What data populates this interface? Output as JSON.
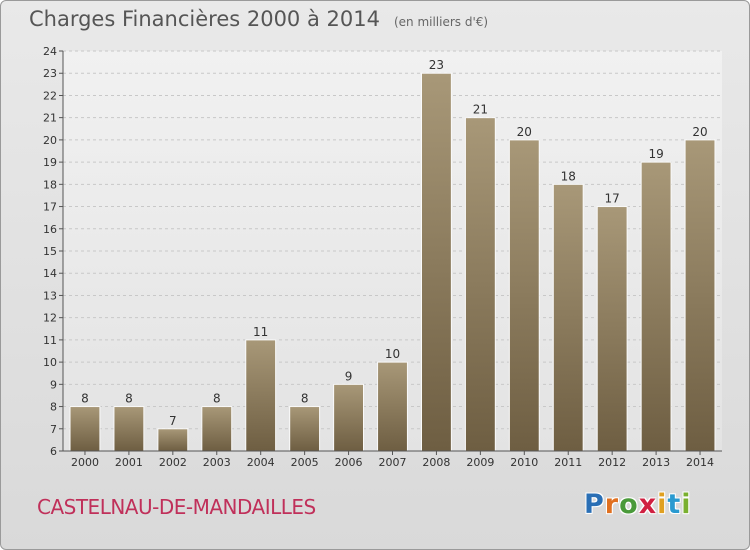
{
  "header": {
    "title": "Charges Financières 2000 à 2014",
    "subtitle": "(en milliers d'€)"
  },
  "footer": {
    "commune": "CASTELNAU-DE-MANDAILLES",
    "logo_letters": [
      "P",
      "r",
      "o",
      "x",
      "i",
      "t",
      "i"
    ],
    "logo_colors": [
      "#2a6fb5",
      "#e07020",
      "#4a9a3a",
      "#d02040",
      "#e0a020",
      "#2a9ad0",
      "#7ab030"
    ]
  },
  "chart_data": {
    "type": "bar",
    "categories": [
      "2000",
      "2001",
      "2002",
      "2003",
      "2004",
      "2005",
      "2006",
      "2007",
      "2008",
      "2009",
      "2010",
      "2011",
      "2012",
      "2013",
      "2014"
    ],
    "values": [
      8,
      8,
      7,
      8,
      11,
      8,
      9,
      10,
      23,
      21,
      20,
      18,
      17,
      19,
      20
    ],
    "value_labels": [
      "8",
      "8",
      "7",
      "8",
      "11",
      "8",
      "9",
      "10",
      "23",
      "21",
      "20",
      "18",
      "17",
      "19",
      "20"
    ],
    "title": "Charges Financières 2000 à 2014",
    "subtitle": "(en milliers d'€)",
    "ylim": [
      6,
      24
    ],
    "yticks": [
      "6",
      "7",
      "8",
      "9",
      "10",
      "11",
      "12",
      "13",
      "14",
      "15",
      "16",
      "17",
      "18",
      "19",
      "20",
      "21",
      "22",
      "23",
      "24"
    ],
    "grid": true,
    "bar_color_top": "#a89878",
    "bar_color_bottom": "#6e5e42"
  }
}
